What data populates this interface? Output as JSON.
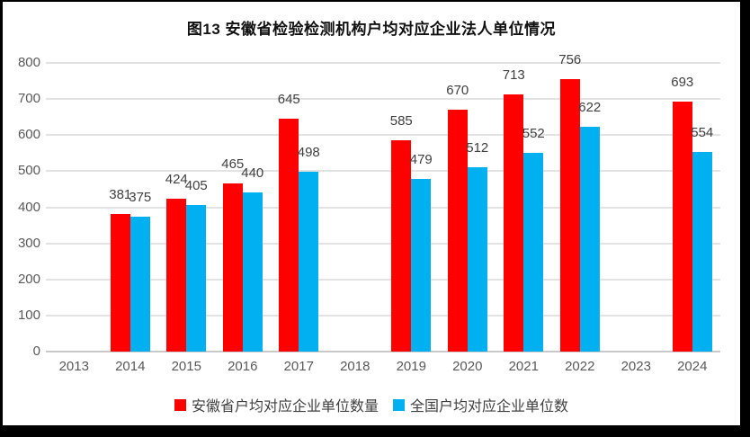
{
  "chart_data": {
    "type": "bar",
    "title": "图13  安徽省检验检测机构户均对应企业法人单位情况",
    "categories": [
      "2013",
      "2014",
      "2015",
      "2016",
      "2017",
      "2018",
      "2019",
      "2020",
      "2021",
      "2022",
      "2023",
      "2024"
    ],
    "series": [
      {
        "name": "安徽省户均对应企业单位数量",
        "color": "#ff0000",
        "values": [
          null,
          381,
          424,
          465,
          645,
          null,
          585,
          670,
          713,
          756,
          null,
          693
        ]
      },
      {
        "name": "全国户均对应企业单位数",
        "color": "#00b0f0",
        "values": [
          null,
          375,
          405,
          440,
          498,
          null,
          479,
          512,
          552,
          622,
          null,
          554
        ]
      }
    ],
    "ylim": [
      0,
      800
    ],
    "yticks": [
      0,
      100,
      200,
      300,
      400,
      500,
      600,
      700,
      800
    ],
    "grid": true,
    "legend_position": "bottom",
    "colors": {
      "grid": "#e2e2e2",
      "axis": "#c9c9c9",
      "tick_text": "#595959",
      "data_label_text": "#404040",
      "frame_border": "#000000"
    }
  }
}
